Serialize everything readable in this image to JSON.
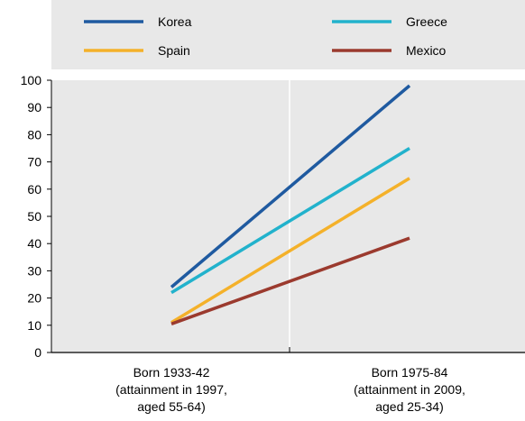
{
  "chart_data": {
    "type": "line",
    "categories": [
      [
        "Born 1933-42",
        "(attainment in 1997,",
        "aged 55-64)"
      ],
      [
        "Born 1975-84",
        "(attainment in 2009,",
        "aged 25-34)"
      ]
    ],
    "series": [
      {
        "name": "Korea",
        "color": "#1f5aa0",
        "values": [
          24,
          98
        ]
      },
      {
        "name": "Greece",
        "color": "#22b2cc",
        "values": [
          22,
          75
        ]
      },
      {
        "name": "Spain",
        "color": "#f4b12a",
        "values": [
          11,
          64
        ]
      },
      {
        "name": "Mexico",
        "color": "#9b3a2e",
        "values": [
          10.5,
          42
        ]
      }
    ],
    "ylim": [
      0,
      100
    ],
    "yticks": [
      0,
      10,
      20,
      30,
      40,
      50,
      60,
      70,
      80,
      90,
      100
    ],
    "legend": "top",
    "plot_background": "#e8e8e8",
    "legend_background": "#e8e8e8"
  }
}
